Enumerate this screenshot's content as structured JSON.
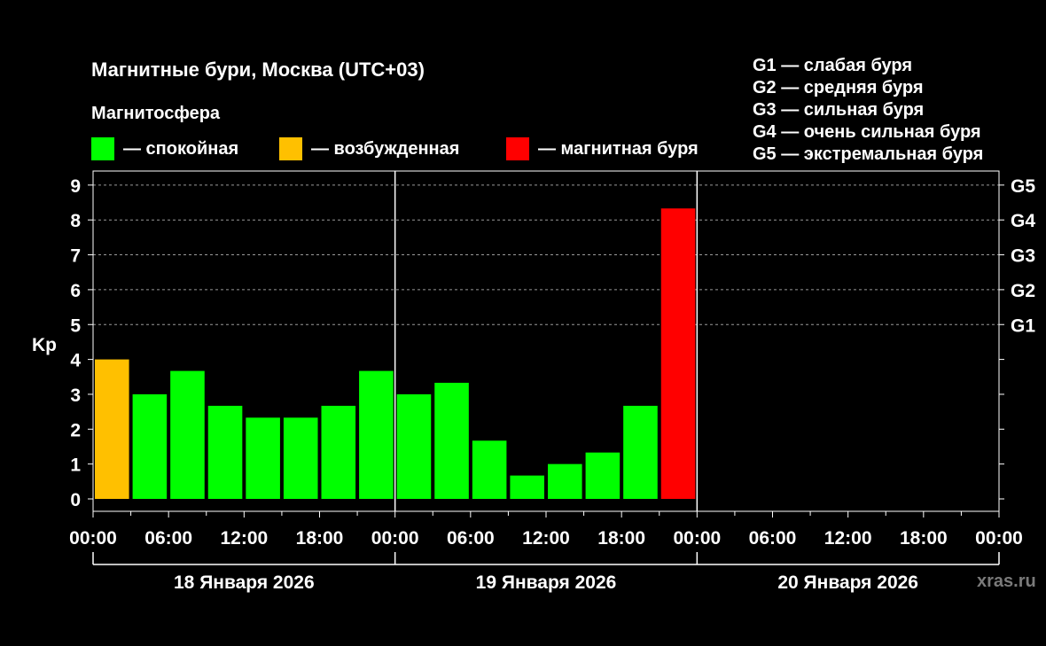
{
  "chart_data": {
    "type": "bar",
    "title": "Магнитные бури, Москва (UTC+03)",
    "legend_title": "Магнитосфера",
    "ylabel": "Kp",
    "ylim": [
      0,
      9
    ],
    "y_ticks": [
      0,
      1,
      2,
      3,
      4,
      5,
      6,
      7,
      8,
      9
    ],
    "x_ticks": [
      "00:00",
      "06:00",
      "12:00",
      "18:00",
      "00:00",
      "06:00",
      "12:00",
      "18:00",
      "00:00",
      "06:00",
      "12:00",
      "18:00",
      "00:00"
    ],
    "days": [
      "18 Января 2026",
      "19 Января 2026",
      "20 Января 2026"
    ],
    "g_levels": [
      {
        "label": "G1",
        "kp": 5
      },
      {
        "label": "G2",
        "kp": 6
      },
      {
        "label": "G3",
        "kp": 7
      },
      {
        "label": "G4",
        "kp": 8
      },
      {
        "label": "G5",
        "kp": 9
      }
    ],
    "g_legend": [
      "G1 — слабая буря",
      "G2 — средняя буря",
      "G3 — сильная буря",
      "G4 — очень сильная буря",
      "G5 — экстремальная буря"
    ],
    "legend": [
      {
        "label": "— спокойная",
        "color": "#00ff00",
        "status": "quiet"
      },
      {
        "label": "— возбужденная",
        "color": "#ffc000",
        "status": "active"
      },
      {
        "label": "— магнитная буря",
        "color": "#ff0000",
        "status": "storm"
      }
    ],
    "bars": [
      {
        "day": 0,
        "slot": 0,
        "kp": 4.0,
        "status": "active"
      },
      {
        "day": 0,
        "slot": 1,
        "kp": 3.0,
        "status": "quiet"
      },
      {
        "day": 0,
        "slot": 2,
        "kp": 3.67,
        "status": "quiet"
      },
      {
        "day": 0,
        "slot": 3,
        "kp": 2.67,
        "status": "quiet"
      },
      {
        "day": 0,
        "slot": 4,
        "kp": 2.33,
        "status": "quiet"
      },
      {
        "day": 0,
        "slot": 5,
        "kp": 2.33,
        "status": "quiet"
      },
      {
        "day": 0,
        "slot": 6,
        "kp": 2.67,
        "status": "quiet"
      },
      {
        "day": 0,
        "slot": 7,
        "kp": 3.67,
        "status": "quiet"
      },
      {
        "day": 1,
        "slot": 0,
        "kp": 3.0,
        "status": "quiet"
      },
      {
        "day": 1,
        "slot": 1,
        "kp": 3.33,
        "status": "quiet"
      },
      {
        "day": 1,
        "slot": 2,
        "kp": 1.67,
        "status": "quiet"
      },
      {
        "day": 1,
        "slot": 3,
        "kp": 0.67,
        "status": "quiet"
      },
      {
        "day": 1,
        "slot": 4,
        "kp": 1.0,
        "status": "quiet"
      },
      {
        "day": 1,
        "slot": 5,
        "kp": 1.33,
        "status": "quiet"
      },
      {
        "day": 1,
        "slot": 6,
        "kp": 2.67,
        "status": "quiet"
      },
      {
        "day": 1,
        "slot": 7,
        "kp": 8.33,
        "status": "storm"
      }
    ],
    "grid": "dashed at Kp 5-9"
  },
  "watermark": "xras.ru"
}
